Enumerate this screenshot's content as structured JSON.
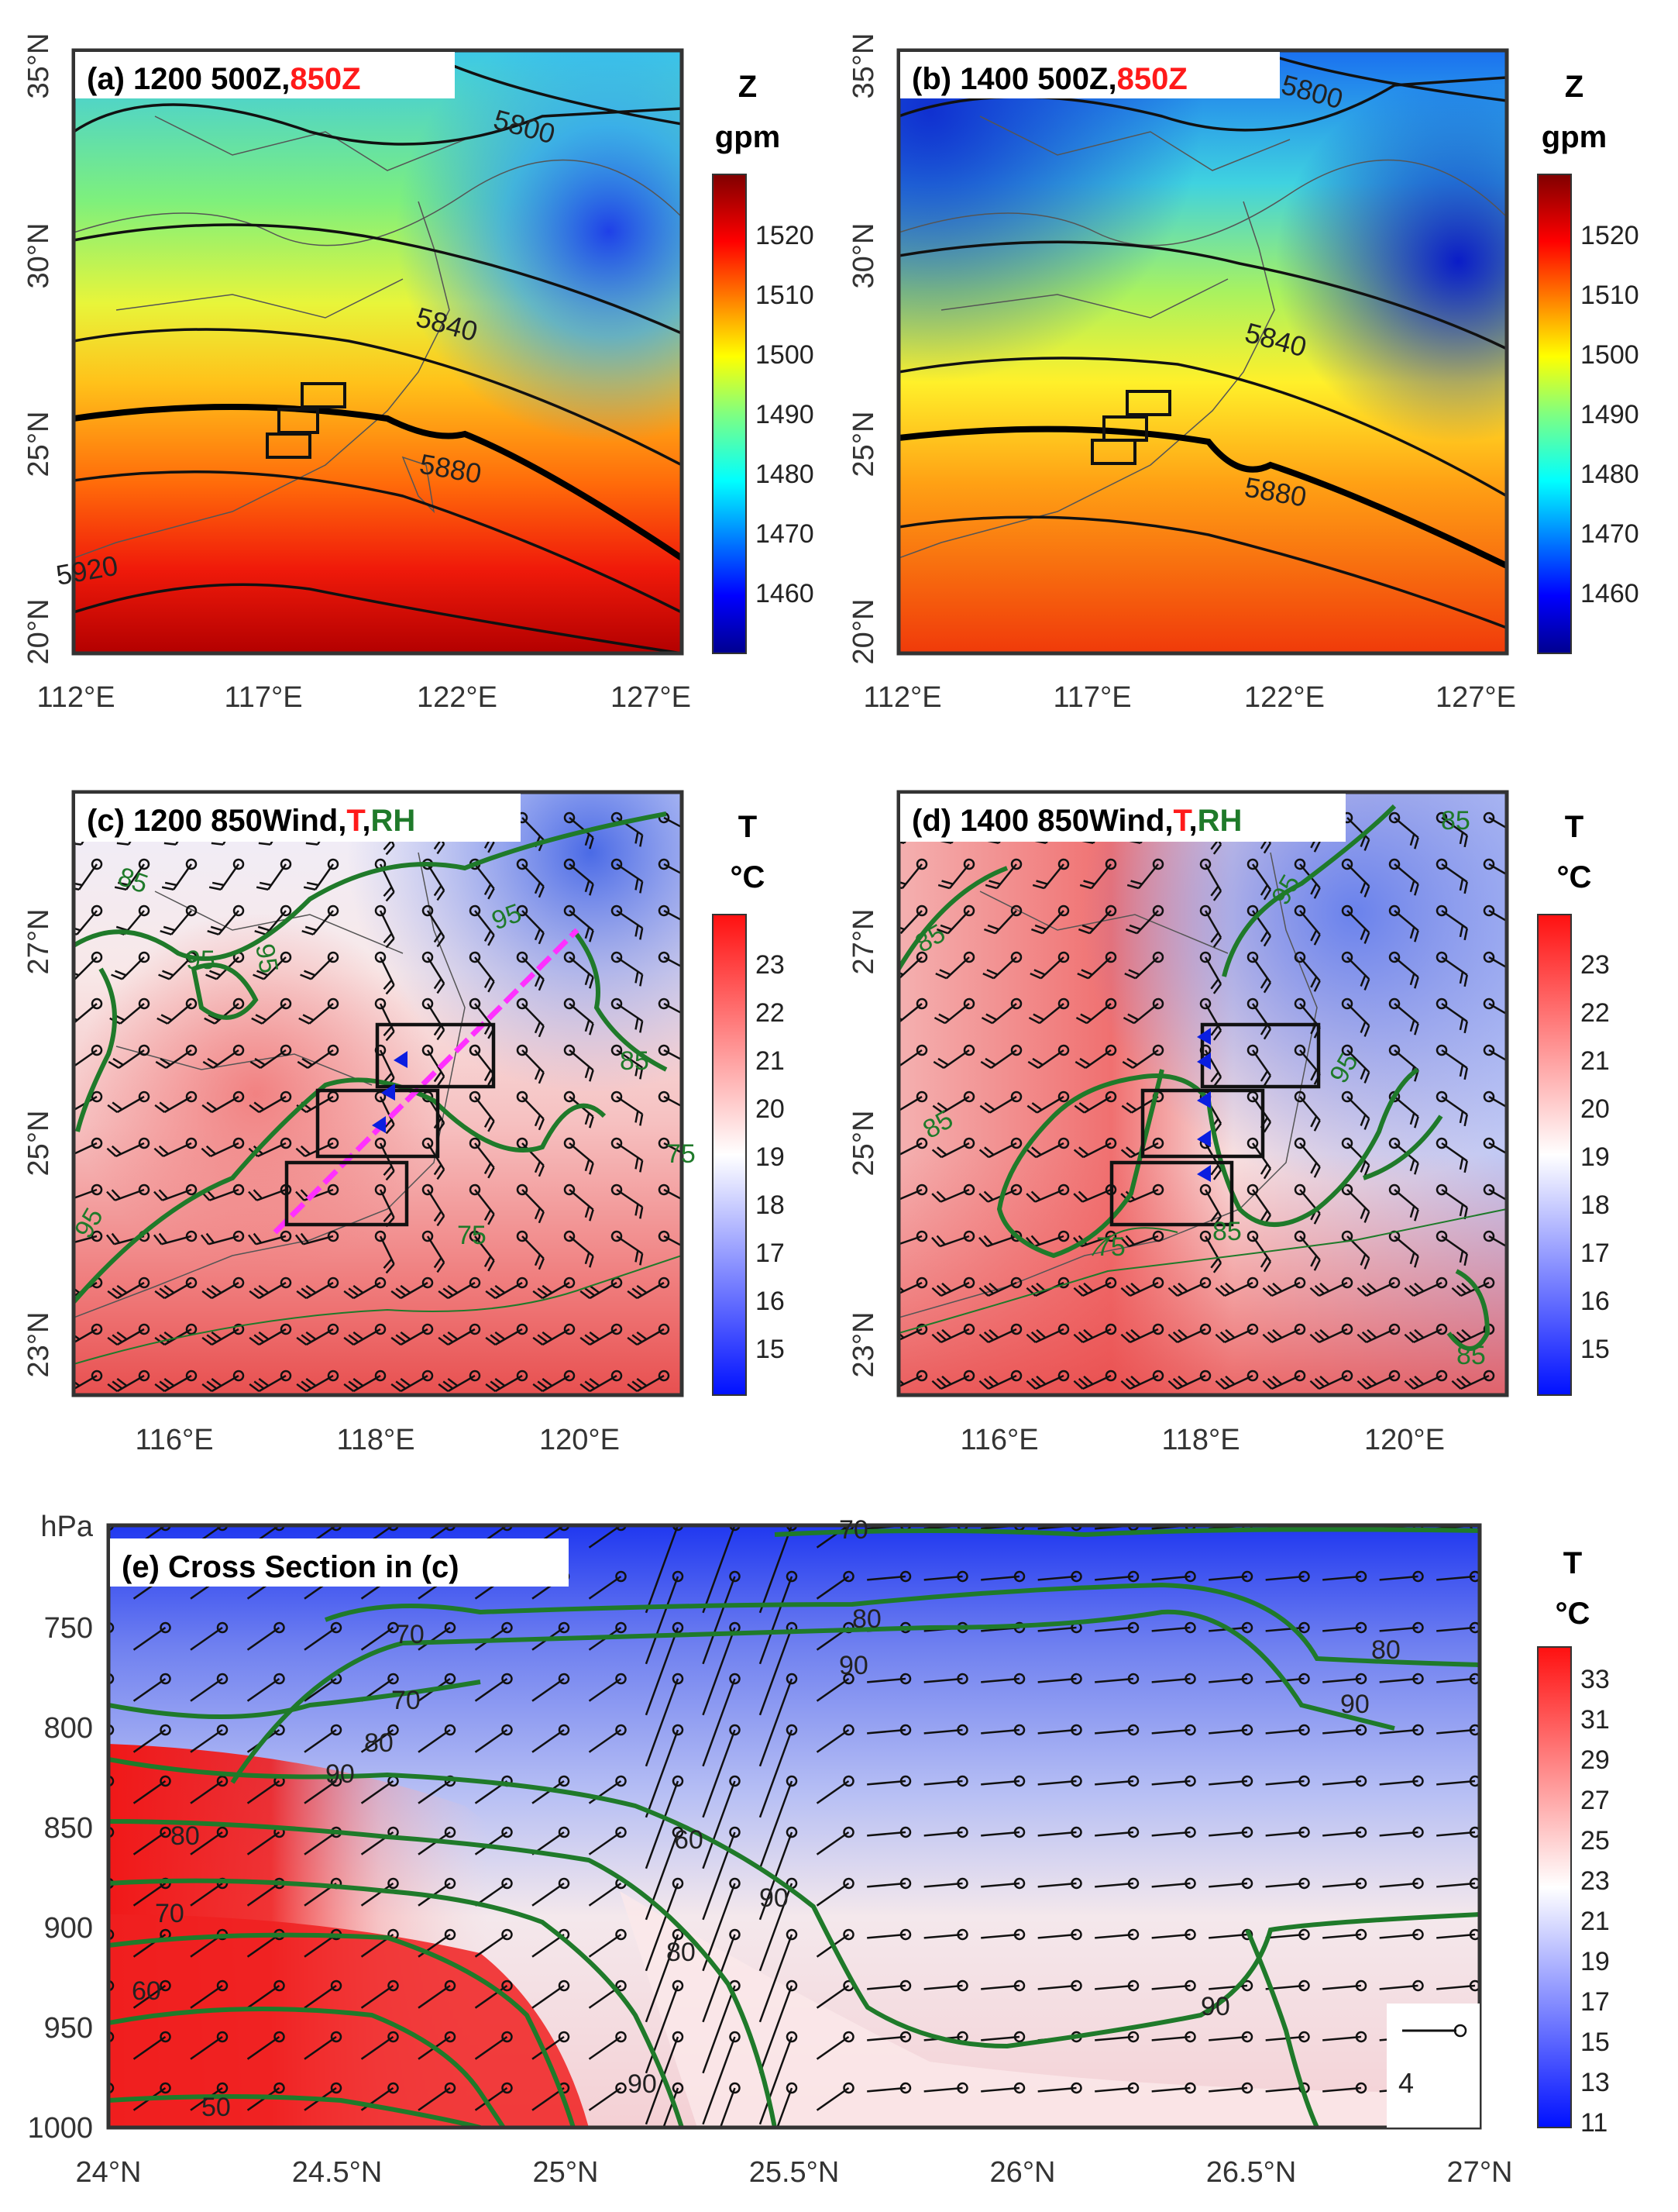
{
  "panels": {
    "a": {
      "title_prefix": "(a) 1200 500Z,",
      "title_red": "850Z",
      "contour_labels": [
        "5800",
        "5840",
        "5880",
        "5920"
      ],
      "lat_ticks": [
        "35°N",
        "30°N",
        "25°N",
        "20°N"
      ],
      "lon_ticks": [
        "112°E",
        "117°E",
        "122°E",
        "127°E"
      ]
    },
    "b": {
      "title_prefix": "(b) 1400 500Z,",
      "title_red": "850Z",
      "contour_labels": [
        "5800",
        "5840",
        "5880"
      ],
      "lat_ticks": [
        "35°N",
        "30°N",
        "25°N",
        "20°N"
      ],
      "lon_ticks": [
        "112°E",
        "117°E",
        "122°E",
        "127°E"
      ]
    },
    "c": {
      "title_prefix": "(c) 1200 850Wind,",
      "title_red": "T",
      "title_sep": ",",
      "title_green": "RH",
      "rh_labels": [
        "85",
        "95",
        "95",
        "95",
        "95",
        "85",
        "75",
        "75"
      ],
      "lat_ticks": [
        "27°N",
        "25°N",
        "23°N"
      ],
      "lon_ticks": [
        "116°E",
        "118°E",
        "120°E"
      ]
    },
    "d": {
      "title_prefix": "(d) 1400 850Wind,",
      "title_red": "T",
      "title_sep": ",",
      "title_green": "RH",
      "rh_labels": [
        "85",
        "85",
        "95",
        "95",
        "85",
        "75",
        "85",
        "85"
      ],
      "lat_ticks": [
        "27°N",
        "25°N",
        "23°N"
      ],
      "lon_ticks": [
        "116°E",
        "118°E",
        "120°E"
      ]
    },
    "e": {
      "title": "(e) Cross Section in (c)",
      "y_unit": "hPa",
      "rh_labels": [
        "70",
        "80",
        "90",
        "80",
        "70",
        "80",
        "90",
        "70",
        "60",
        "50",
        "90",
        "80",
        "90",
        "70",
        "60",
        "90",
        "80",
        "90"
      ],
      "scale_label": "4"
    }
  },
  "colorbars": {
    "z": {
      "title": "Z",
      "unit": "gpm",
      "ticks": [
        "1520",
        "1510",
        "1500",
        "1490",
        "1480",
        "1470",
        "1460"
      ]
    },
    "t850": {
      "title": "T",
      "unit": "°C",
      "ticks": [
        "23",
        "22",
        "21",
        "20",
        "19",
        "18",
        "17",
        "16",
        "15"
      ]
    },
    "tcross": {
      "title": "T",
      "unit": "°C",
      "ticks": [
        "33",
        "31",
        "29",
        "27",
        "25",
        "23",
        "21",
        "19",
        "17",
        "15",
        "13",
        "11"
      ]
    }
  },
  "chart_data": [
    {
      "type": "heatmap",
      "panel": "a",
      "title": "(a) 1200 500Z,850Z",
      "field": "850 hPa geopotential height (shaded, gpm) with 500 hPa height contours",
      "xlim": [
        112,
        128
      ],
      "ylim": [
        20,
        35
      ],
      "contour_levels_500Z": [
        5800,
        5840,
        5880,
        5920
      ],
      "colorbar_range": [
        1455,
        1530
      ]
    },
    {
      "type": "heatmap",
      "panel": "b",
      "title": "(b) 1400 500Z,850Z",
      "xlim": [
        112,
        128
      ],
      "ylim": [
        20,
        35
      ],
      "contour_levels_500Z": [
        5800,
        5840,
        5880
      ],
      "colorbar_range": [
        1455,
        1530
      ]
    },
    {
      "type": "heatmap",
      "panel": "c",
      "title": "(c) 1200 850Wind,T,RH",
      "xlim": [
        115,
        121
      ],
      "ylim": [
        22.6,
        28.6
      ],
      "rh_contours": [
        75,
        85,
        95
      ],
      "colorbar_range": [
        14,
        24
      ]
    },
    {
      "type": "heatmap",
      "panel": "d",
      "title": "(d) 1400 850Wind,T,RH",
      "xlim": [
        115,
        121
      ],
      "ylim": [
        22.6,
        28.6
      ],
      "rh_contours": [
        75,
        85,
        95
      ],
      "colorbar_range": [
        14,
        24
      ]
    },
    {
      "type": "heatmap",
      "panel": "e",
      "title": "(e) Cross Section in (c)",
      "x_ticks": [
        "24°N",
        "24.5°N",
        "25°N",
        "25.5°N",
        "26°N",
        "26.5°N",
        "27°N"
      ],
      "y_ticks": [
        "750",
        "800",
        "850",
        "900",
        "950",
        "1000"
      ],
      "xlim": [
        24,
        27
      ],
      "ylim": [
        1000,
        700
      ],
      "rh_contours": [
        50,
        60,
        70,
        80,
        90
      ],
      "colorbar_range": [
        10,
        34
      ]
    }
  ]
}
